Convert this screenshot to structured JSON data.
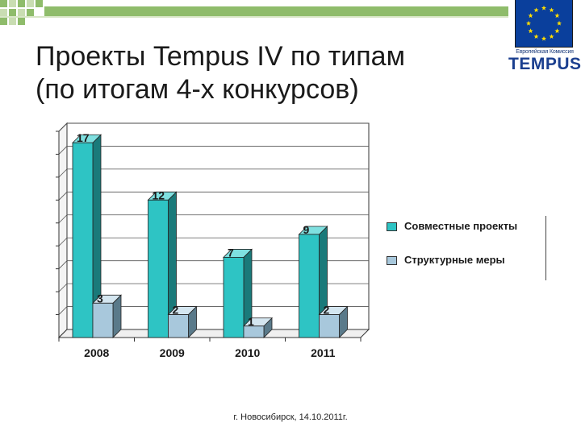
{
  "title": {
    "line1": "Проекты Tempus IV по типам",
    "line2": "(по итогам 4-х конкурсов)"
  },
  "logo": {
    "subtitle": "Европейская Комиссия",
    "name": "TEMPUS"
  },
  "colors": {
    "joint": "#2ec4c4",
    "structural": "#a8c8dc",
    "accent_squares": "#8fbc6b"
  },
  "chart_data": {
    "type": "bar",
    "categories": [
      "2008",
      "2009",
      "2010",
      "2011"
    ],
    "series": [
      {
        "name": "Совместные проекты",
        "values": [
          17,
          12,
          7,
          9
        ]
      },
      {
        "name": "Структурные меры",
        "values": [
          3,
          2,
          1,
          2
        ]
      }
    ],
    "ylim": [
      0,
      18
    ],
    "grid": true,
    "legend_position": "right"
  },
  "footer": "г. Новосибирск, 14.10.2011г."
}
